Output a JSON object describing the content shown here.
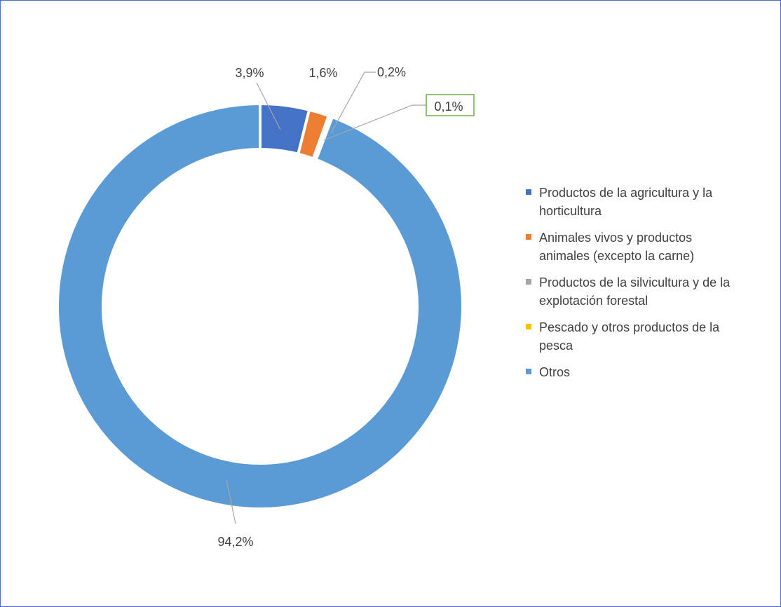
{
  "chart_data": {
    "type": "pie",
    "variant": "donut",
    "legend_position": "right",
    "series": [
      {
        "name": "Productos de la agricultura y la horticultura",
        "value": 3.9,
        "label": "3,9%",
        "color": "#4472c4"
      },
      {
        "name": "Animales vivos y productos animales (excepto la carne)",
        "value": 1.6,
        "label": "1,6%",
        "color": "#ed7d31"
      },
      {
        "name": "Productos de la silvicultura y de la explotación forestal",
        "value": 0.2,
        "label": "0,2%",
        "color": "#a5a5a5"
      },
      {
        "name": "Pescado y otros productos de la pesca",
        "value": 0.1,
        "label": "0,1%",
        "color": "#ffc000"
      },
      {
        "name": "Otros",
        "value": 94.2,
        "label": "94,2%",
        "color": "#5b9bd5"
      }
    ],
    "legend": [
      {
        "line1": "Productos de la agricultura y la",
        "line2": "horticultura",
        "color": "#4472c4"
      },
      {
        "line1": "Animales vivos y productos",
        "line2": "animales (excepto la carne)",
        "color": "#ed7d31"
      },
      {
        "line1": "Productos de la silvicultura y de la",
        "line2": "explotación forestal",
        "color": "#a5a5a5"
      },
      {
        "line1": "Pescado y otros productos de la",
        "line2": "pesca",
        "color": "#ffc000"
      },
      {
        "line1": "Otros",
        "line2": "",
        "color": "#5b9bd5"
      }
    ],
    "label_box_color": "#70ad47"
  }
}
